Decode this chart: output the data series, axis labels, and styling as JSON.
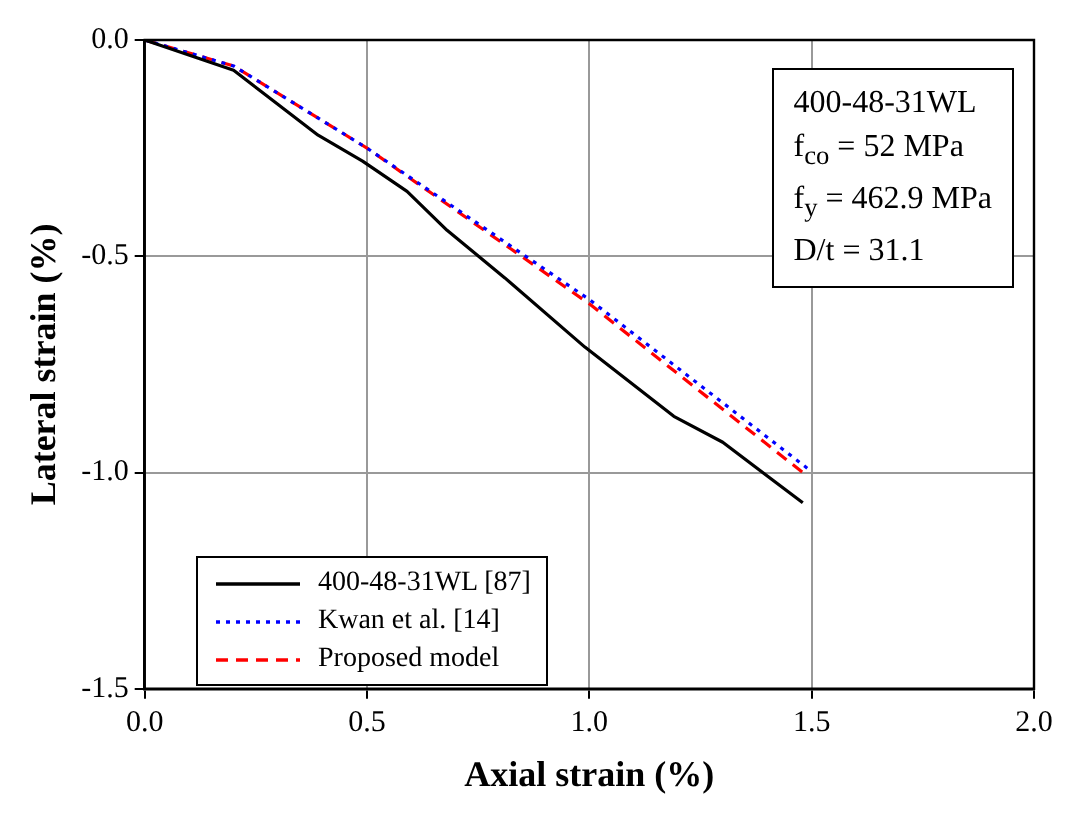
{
  "chart_data": {
    "type": "line",
    "xlabel": "Axial strain (%)",
    "ylabel": "Lateral strain (%)",
    "xlim": [
      0,
      2
    ],
    "xticks": [
      {
        "value": 0,
        "label": "0.0"
      },
      {
        "value": 0.5,
        "label": "0.5"
      },
      {
        "value": 1,
        "label": "1.0"
      },
      {
        "value": 1.5,
        "label": "1.5"
      },
      {
        "value": 2,
        "label": "2.0"
      }
    ],
    "ylim": [
      -1.5,
      0
    ],
    "yticks": [
      {
        "value": -1.5,
        "label": "-1.5"
      },
      {
        "value": -1,
        "label": "-1.0"
      },
      {
        "value": -0.5,
        "label": "-0.5"
      },
      {
        "value": 0,
        "label": "0.0"
      }
    ],
    "grid": true,
    "legend": "bottom left",
    "marker": "none",
    "annotations": [
      "400-48-31WL",
      "f$_{co}$ = 52 MPa",
      "f$_{y}$ = 462.9 MPa",
      "D/t = 31.1"
    ],
    "series": [
      {
        "name": "400-48-31WL [87]",
        "color": "#000000",
        "line_style": "solid",
        "x": [
          0,
          0.2,
          0.39,
          0.49,
          0.59,
          0.68,
          0.81,
          0.99,
          1.19,
          1.3,
          1.48
        ],
        "values": [
          0,
          -0.07,
          -0.22,
          -0.28,
          -0.35,
          -0.44,
          -0.55,
          -0.71,
          -0.87,
          -0.93,
          -1.07
        ]
      },
      {
        "name": "Kwan et al. [14]",
        "color": "#0000ff",
        "line_style": "dotted",
        "x": [
          0,
          0.2,
          0.5,
          1.0,
          1.49
        ],
        "values": [
          0,
          -0.06,
          -0.25,
          -0.6,
          -0.99
        ]
      },
      {
        "name": "Proposed model",
        "color": "#ff0000",
        "line_style": "dashed",
        "x": [
          0,
          0.2,
          0.5,
          1.0,
          1.48
        ],
        "values": [
          0,
          -0.06,
          -0.25,
          -0.61,
          -1.0
        ]
      }
    ]
  }
}
